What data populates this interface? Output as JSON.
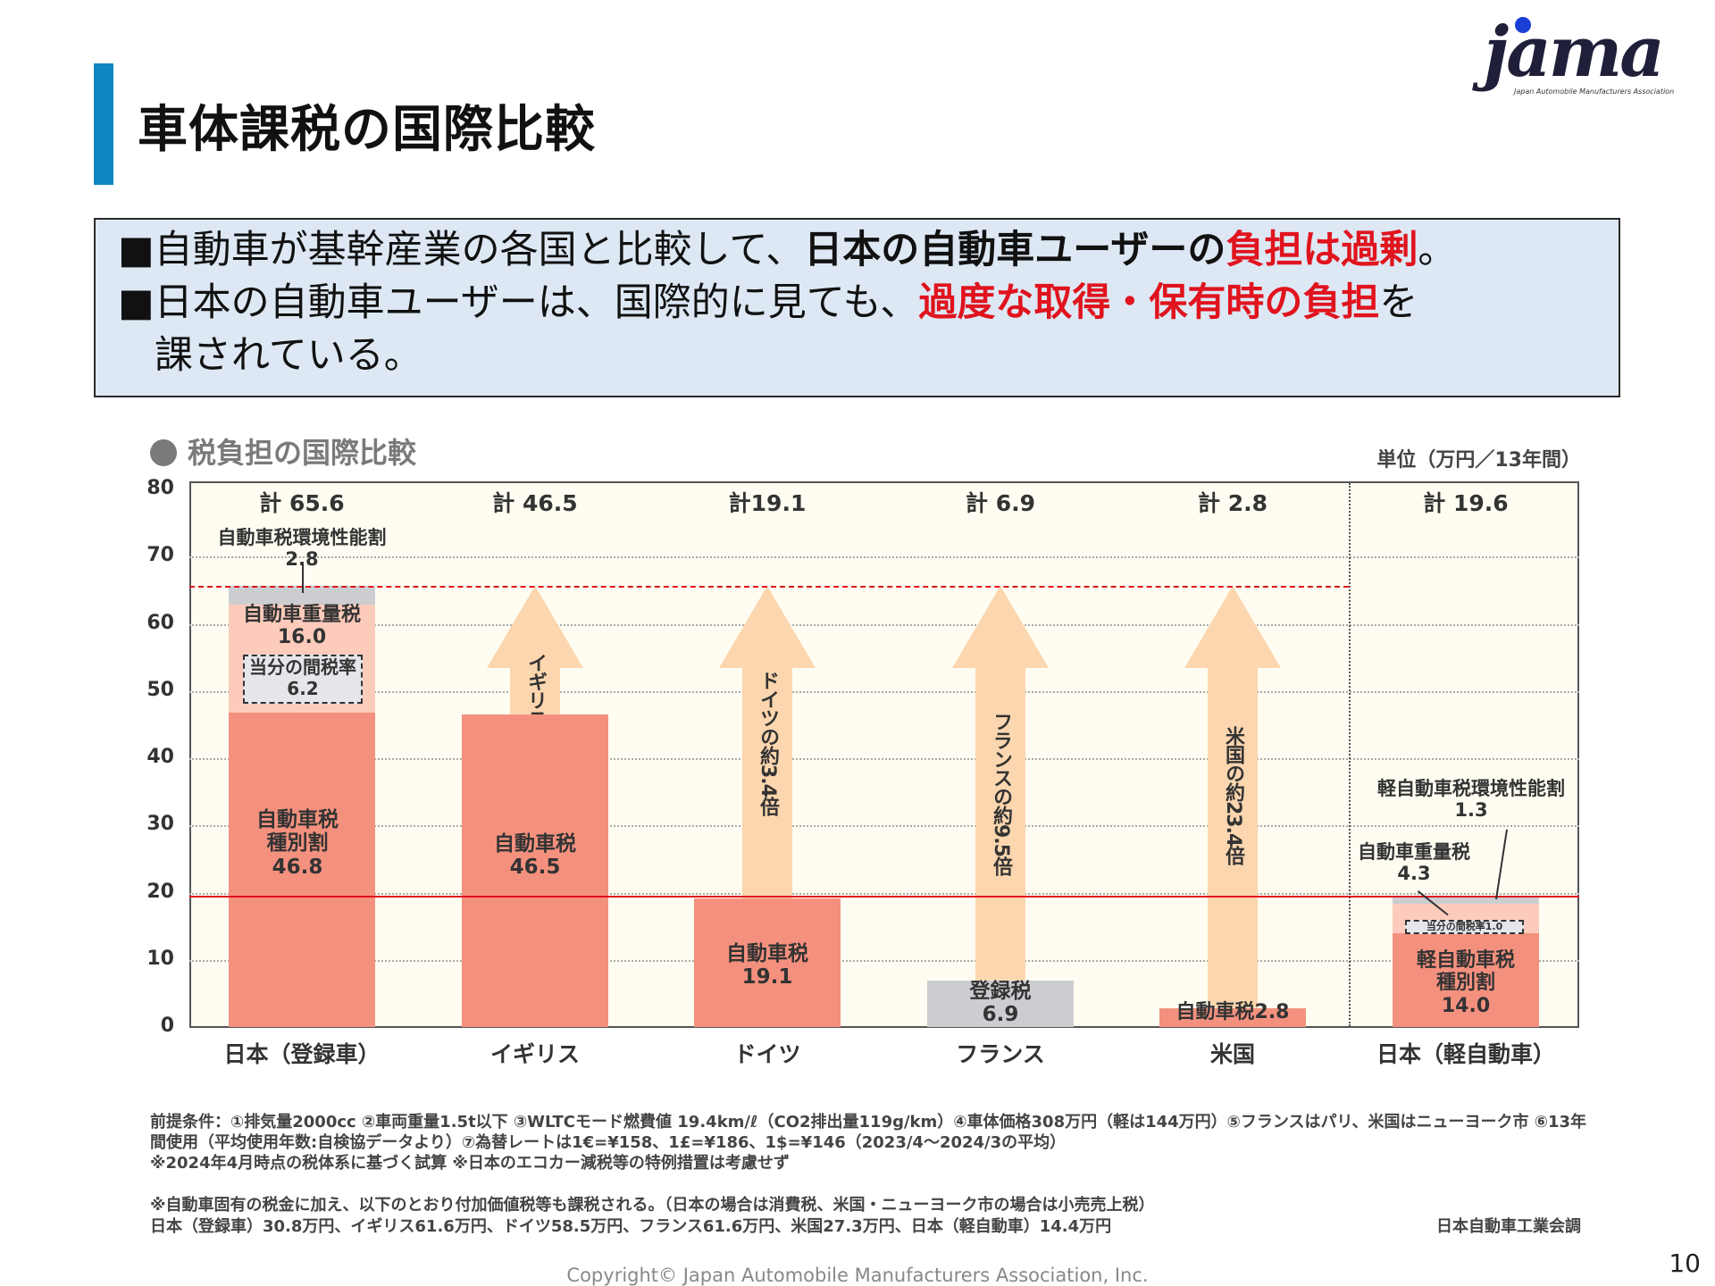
{
  "header": {
    "title": "車体課税の国際比較",
    "logo": {
      "text": "jama",
      "subtitle": "Japan Automobile Manufacturers Association"
    }
  },
  "summary": {
    "line1": {
      "bullet": "■",
      "plain": "自動車が基幹産業の各国と比較して、",
      "bold": "日本の自動車ユーザーの",
      "red": "負担は過剰",
      "end": "。"
    },
    "line2": {
      "bullet": "■",
      "plain": "日本の自動車ユーザーは、国際的に見ても、",
      "red": "過度な取得・保有時の負担",
      "end": "を"
    },
    "line3": "課されている。"
  },
  "colors": {
    "accent": "#0e86c2",
    "red": "#e0141e",
    "box_bg": "#dde8f4",
    "salmon": "#f4917e",
    "pink": "#fdcbbb",
    "gray": "#cbcdd1",
    "arrow": "#fcd6ae",
    "plot_bg": "#fffdf1"
  },
  "chart_data": {
    "type": "bar",
    "stacked": true,
    "title": "税負担の国際比較",
    "unit": "単位（万円／13年間）",
    "ylim": [
      0,
      80
    ],
    "yticks": [
      0,
      10,
      20,
      30,
      40,
      50,
      60,
      70,
      80
    ],
    "grid": true,
    "categories": [
      "日本（登録車）",
      "イギリス",
      "ドイツ",
      "フランス",
      "米国",
      "日本（軽自動車）"
    ],
    "totals": [
      "計 65.6",
      "計 46.5",
      "計19.1",
      "計 6.9",
      "計 2.8",
      "計 19.6"
    ],
    "reference_lines": [
      {
        "value": 65.6,
        "style": "dashed",
        "color": "#e0141e"
      },
      {
        "value": 19.6,
        "style": "solid",
        "color": "#e0141e"
      }
    ],
    "bars": [
      {
        "category": "日本（登録車）",
        "segments": [
          {
            "label": "自動車税\n種別割\n46.8",
            "value": 46.8,
            "color": "#f4917e"
          },
          {
            "label": "自動車重量税\n16.0",
            "value": 16.0,
            "color": "#fdcbbb",
            "inner": "当分の間税率\n6.2",
            "inner_value": 6.2
          },
          {
            "label": "自動車税環境性能割\n2.8",
            "value": 2.8,
            "color": "#cbcdd1"
          }
        ]
      },
      {
        "category": "イギリス",
        "segments": [
          {
            "label": "自動車税\n46.5",
            "value": 46.5,
            "color": "#f4917e"
          }
        ]
      },
      {
        "category": "ドイツ",
        "segments": [
          {
            "label": "自動車税\n19.1",
            "value": 19.1,
            "color": "#f4917e"
          }
        ]
      },
      {
        "category": "フランス",
        "segments": [
          {
            "label": "登録税\n6.9",
            "value": 6.9,
            "color": "#cbcdd1"
          }
        ]
      },
      {
        "category": "米国",
        "segments": [
          {
            "label": "自動車税2.8",
            "value": 2.8,
            "color": "#f4917e"
          }
        ]
      },
      {
        "category": "日本（軽自動車）",
        "segments": [
          {
            "label": "軽自動車税\n種別割\n14.0",
            "value": 14.0,
            "color": "#f4917e"
          },
          {
            "label": "自動車重量税\n4.3",
            "value": 4.3,
            "color": "#fdcbbb",
            "inner": "当分の間税率1.0",
            "inner_value": 1.0
          },
          {
            "label": "軽自動車税環境性能割\n1.3",
            "value": 1.3,
            "color": "#cbcdd1"
          }
        ]
      }
    ],
    "arrows": [
      {
        "category": "イギリス",
        "text": "イギリスの約1.4倍"
      },
      {
        "category": "ドイツ",
        "text": "ドイツの約3.4倍"
      },
      {
        "category": "フランス",
        "text": "フランスの約9.5倍"
      },
      {
        "category": "米国",
        "text": "米国の約23.4倍"
      }
    ]
  },
  "notes": [
    "前提条件：①排気量2000cc ②車両重量1.5t以下 ③WLTCモード燃費値 19.4km/ℓ（CO2排出量119g/km）④車体価格308万円（軽は144万円）⑤フランスはパリ、米国はニューヨーク市 ⑥13年",
    "間使用（平均使用年数:自検協データより）⑦為替レートは1€=¥158、1£=¥186、1$=¥146（2023/4～2024/3の平均）",
    "※2024年4月時点の税体系に基づく試算 ※日本のエコカー減税等の特例措置は考慮せず",
    "※自動車固有の税金に加え、以下のとおり付加価値税等も課税される。（日本の場合は消費税、米国・ニューヨーク市の場合は小売売上税）",
    "日本（登録車）30.8万円、イギリス61.6万円、ドイツ58.5万円、フランス61.6万円、米国27.3万円、日本（軽自動車）14.4万円"
  ],
  "source": "日本自動車工業会調",
  "footer": {
    "copyright": "Copyright© Japan Automobile Manufacturers Association, Inc.",
    "page_number": "10"
  }
}
